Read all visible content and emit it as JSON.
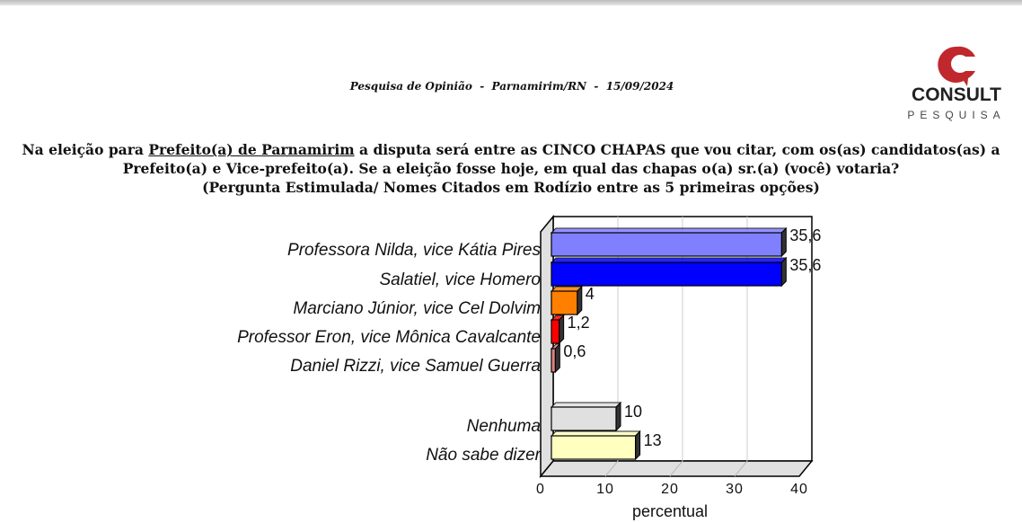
{
  "header": {
    "subtitle": "Pesquisa de Opinião  -  Parnamirim/RN  -  15/09/2024",
    "logo": {
      "brand": "CONSULT",
      "tagline": "PESQUISA",
      "color": "#c0282d"
    }
  },
  "question": {
    "line1_pre": "Na eleição para ",
    "line1_underlined": "Prefeito(a) de Parnamirim",
    "line1_post": " a disputa será entre as CINCO CHAPAS que vou citar, com os(as) candidatos(as) a",
    "line2": "Prefeito(a) e Vice-prefeito(a). Se a eleição fosse hoje, em qual das chapas o(a) sr.(a) (você) votaria?",
    "line3": "(Pergunta Estimulada/ Nomes Citados em Rodízio entre as 5 primeiras opções)"
  },
  "chart_data": {
    "type": "bar",
    "orientation": "horizontal",
    "style": "3d",
    "categories": [
      "Professora Nilda, vice Kátia Pires",
      "Salatiel, vice Homero",
      "Marciano Júnior, vice Cel Dolvim",
      "Professor Eron, vice Mônica Cavalcante",
      "Daniel Rizzi, vice Samuel Guerra",
      "Nenhuma",
      "Não sabe dizer"
    ],
    "values": [
      35.6,
      35.6,
      4,
      1.2,
      0.6,
      10,
      13
    ],
    "value_labels": [
      "35,6",
      "35,6",
      "4",
      "1,2",
      "0,6",
      "10",
      "13"
    ],
    "colors": [
      "#8080ff",
      "#0000ff",
      "#ff8000",
      "#ff0000",
      "#e08080",
      "#e0e0e0",
      "#ffffc0"
    ],
    "xlabel": "percentual",
    "xlim": [
      0,
      40
    ],
    "xticks": [
      "0",
      "10",
      "20",
      "30",
      "40"
    ],
    "grid": true
  }
}
